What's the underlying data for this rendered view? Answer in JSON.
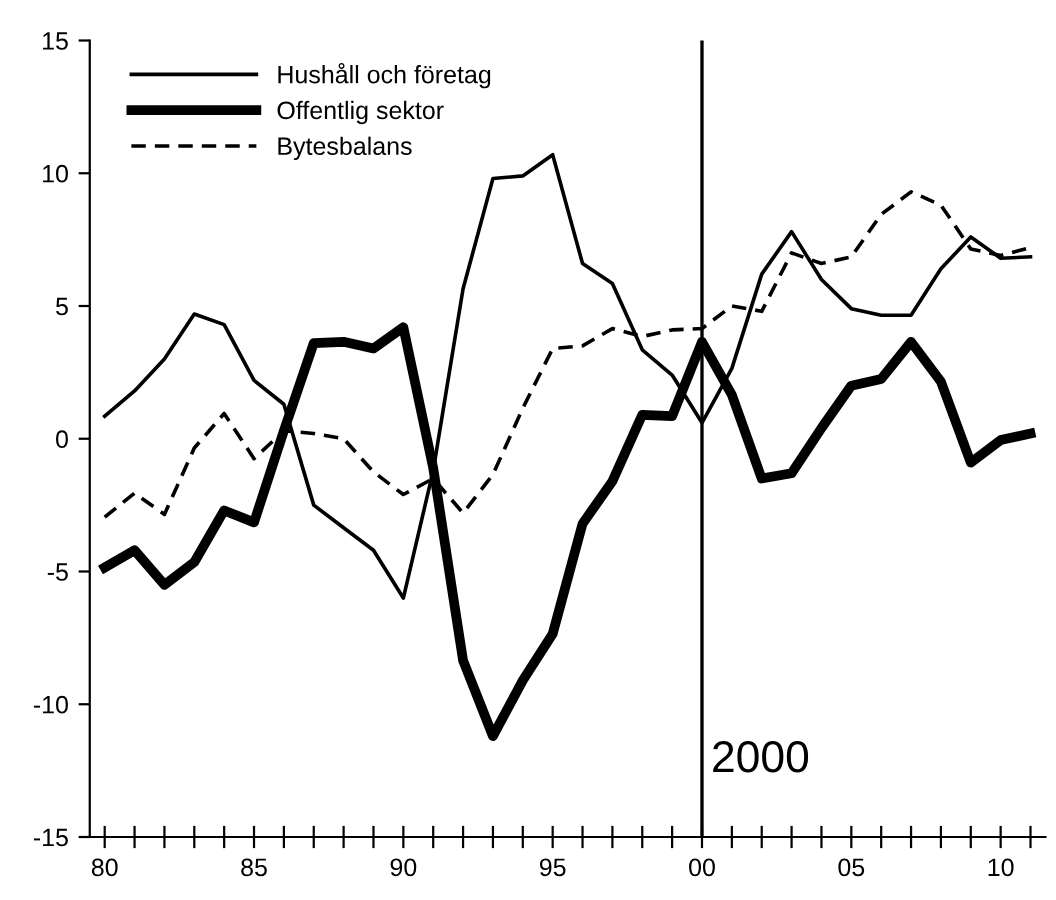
{
  "chart_data": {
    "type": "line",
    "x": [
      1980,
      1981,
      1982,
      1983,
      1984,
      1985,
      1986,
      1987,
      1988,
      1989,
      1990,
      1991,
      1992,
      1993,
      1994,
      1995,
      1996,
      1997,
      1998,
      1999,
      2000,
      2001,
      2002,
      2003,
      2004,
      2005,
      2006,
      2007,
      2008,
      2009,
      2010,
      2011
    ],
    "series": [
      {
        "name": "Hushåll och företag",
        "color": "#000000",
        "line_style": "solid",
        "values": [
          0.85,
          1.8,
          3.0,
          4.7,
          4.3,
          2.2,
          1.3,
          -2.5,
          -3.35,
          -4.2,
          -6.0,
          -1.2,
          5.65,
          9.8,
          9.9,
          10.7,
          6.6,
          5.85,
          3.35,
          2.4,
          0.6,
          2.65,
          6.2,
          7.8,
          6.0,
          4.9,
          4.65,
          4.65,
          6.4,
          7.6,
          6.8,
          6.85
        ]
      },
      {
        "name": "Offentlig sektor",
        "color": "#000000",
        "line_style": "solid",
        "values": [
          -4.85,
          -4.2,
          -5.5,
          -4.65,
          -2.7,
          -3.15,
          0.3,
          3.6,
          3.65,
          3.4,
          4.2,
          -1.1,
          -8.35,
          -11.2,
          -9.1,
          -7.35,
          -3.2,
          -1.6,
          0.9,
          0.85,
          3.65,
          1.65,
          -1.5,
          -1.3,
          0.4,
          2.0,
          2.25,
          3.65,
          2.15,
          -0.9,
          -0.05,
          0.2
        ]
      },
      {
        "name": "Bytesbalans",
        "color": "#000000",
        "line_style": "dashed",
        "values": [
          -2.95,
          -2.05,
          -2.85,
          -0.35,
          0.95,
          -0.75,
          0.3,
          0.2,
          0.0,
          -1.25,
          -2.1,
          -1.5,
          -2.8,
          -1.35,
          1.15,
          3.4,
          3.5,
          4.15,
          3.85,
          4.1,
          4.15,
          5.0,
          4.8,
          7.0,
          6.6,
          6.85,
          8.45,
          9.3,
          8.8,
          7.15,
          6.9,
          7.2
        ]
      }
    ],
    "xlim": [
      1979.5,
      2011.5
    ],
    "xticks": [
      {
        "value": 1980,
        "label": "80"
      },
      {
        "value": 1981,
        "label": null
      },
      {
        "value": 1982,
        "label": null
      },
      {
        "value": 1983,
        "label": null
      },
      {
        "value": 1984,
        "label": null
      },
      {
        "value": 1985,
        "label": "85"
      },
      {
        "value": 1986,
        "label": null
      },
      {
        "value": 1987,
        "label": null
      },
      {
        "value": 1988,
        "label": null
      },
      {
        "value": 1989,
        "label": null
      },
      {
        "value": 1990,
        "label": "90"
      },
      {
        "value": 1991,
        "label": null
      },
      {
        "value": 1992,
        "label": null
      },
      {
        "value": 1993,
        "label": null
      },
      {
        "value": 1994,
        "label": null
      },
      {
        "value": 1995,
        "label": "95"
      },
      {
        "value": 1996,
        "label": null
      },
      {
        "value": 1997,
        "label": null
      },
      {
        "value": 1998,
        "label": null
      },
      {
        "value": 1999,
        "label": null
      },
      {
        "value": 2000,
        "label": "00"
      },
      {
        "value": 2001,
        "label": null
      },
      {
        "value": 2002,
        "label": null
      },
      {
        "value": 2003,
        "label": null
      },
      {
        "value": 2004,
        "label": null
      },
      {
        "value": 2005,
        "label": "05"
      },
      {
        "value": 2006,
        "label": null
      },
      {
        "value": 2007,
        "label": null
      },
      {
        "value": 2008,
        "label": null
      },
      {
        "value": 2009,
        "label": null
      },
      {
        "value": 2010,
        "label": "10"
      },
      {
        "value": 2011,
        "label": null
      }
    ],
    "ylim": [
      -15,
      15
    ],
    "yticks": [
      -15,
      -10,
      -5,
      0,
      5,
      10,
      15
    ],
    "ref_lines": [
      {
        "axis": "x",
        "value": 2000,
        "label": "2000",
        "color": "#000000"
      }
    ],
    "legend": "top left",
    "grid": false
  }
}
